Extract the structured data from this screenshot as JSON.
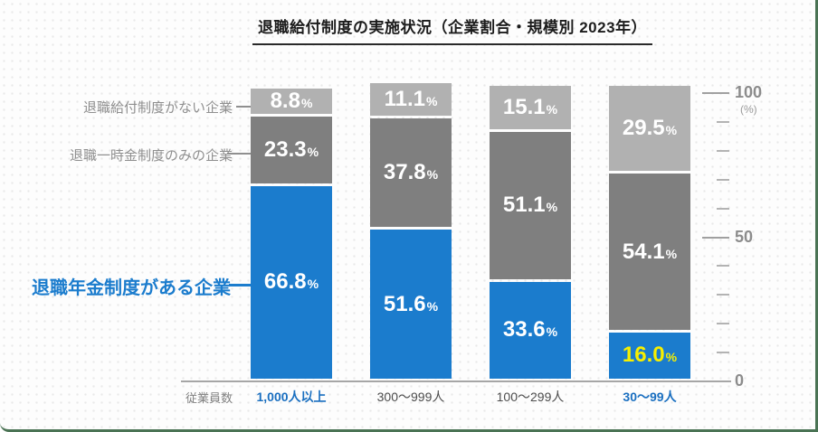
{
  "title": "退職給付制度の実施状況（企業割合・規模別 2023年）",
  "colors": {
    "blue": "#1b7ccd",
    "dark_gray": "#7f7f7f",
    "light_gray": "#b1b1b1",
    "highlight_yellow": "#f7ef00",
    "category_blue": "#1a6fc0",
    "category_gray": "#4d4d4d",
    "border_green": "#4a7354"
  },
  "chart_data": {
    "type": "bar",
    "stacked": true,
    "title": "退職給付制度の実施状況（企業割合・規模別 2023年）",
    "xlabel": "従業員数",
    "unit_label": "(%)",
    "ylim": [
      0,
      100
    ],
    "ytick_step": 10,
    "yticks_major": [
      0,
      50,
      100
    ],
    "grid": false,
    "legend_position": "left",
    "categories": [
      "1,000人以上",
      "300〜999人",
      "100〜299人",
      "30〜99人"
    ],
    "category_colors": [
      "#1a6fc0",
      "#4d4d4d",
      "#4d4d4d",
      "#1a6fc0"
    ],
    "series": [
      {
        "name": "退職年金制度がある企業",
        "color_key": "blue",
        "values": [
          66.8,
          51.6,
          33.6,
          16.0
        ],
        "label_colors": [
          "#ffffff",
          "#ffffff",
          "#ffffff",
          "#f7ef00"
        ]
      },
      {
        "name": "退職一時金制度のみの企業",
        "color_key": "dark_gray",
        "values": [
          23.3,
          37.8,
          51.1,
          54.1
        ],
        "label_colors": [
          "#ffffff",
          "#ffffff",
          "#ffffff",
          "#ffffff"
        ]
      },
      {
        "name": "退職給付制度がない企業",
        "color_key": "light_gray",
        "values": [
          8.8,
          11.1,
          15.1,
          29.5
        ],
        "label_colors": [
          "#ffffff",
          "#ffffff",
          "#ffffff",
          "#ffffff"
        ]
      }
    ]
  }
}
